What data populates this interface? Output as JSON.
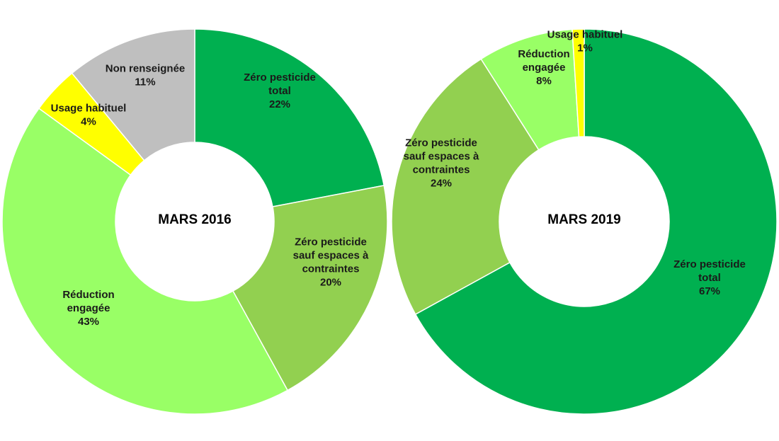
{
  "chart_data": [
    {
      "type": "pie",
      "title": "MARS 2016",
      "slices": [
        {
          "name": "Zéro pesticide total",
          "label_lines": [
            "Zéro pesticide",
            "total"
          ],
          "pct_label": "22%",
          "value": 22,
          "color": "#00b050"
        },
        {
          "name": "Zéro pesticide sauf espaces à contraintes",
          "label_lines": [
            "Zéro pesticide",
            "sauf espaces à",
            "contraintes"
          ],
          "pct_label": "20%",
          "value": 20,
          "color": "#92d050"
        },
        {
          "name": "Réduction engagée",
          "label_lines": [
            "Réduction",
            "engagée"
          ],
          "pct_label": "43%",
          "value": 43,
          "color": "#99ff66"
        },
        {
          "name": "Usage habituel",
          "label_lines": [
            "Usage habituel"
          ],
          "pct_label": "4%",
          "value": 4,
          "color": "#ffff00"
        },
        {
          "name": "Non renseignée",
          "label_lines": [
            "Non renseignée"
          ],
          "pct_label": "11%",
          "value": 11,
          "color": "#bfbfbf"
        }
      ]
    },
    {
      "type": "pie",
      "title": "MARS 2019",
      "slices": [
        {
          "name": "Zéro pesticide total",
          "label_lines": [
            "Zéro pesticide",
            "total"
          ],
          "pct_label": "67%",
          "value": 67,
          "color": "#00b050"
        },
        {
          "name": "Zéro pesticide sauf espaces à contraintes",
          "label_lines": [
            "Zéro pesticide",
            "sauf espaces à",
            "contraintes"
          ],
          "pct_label": "24%",
          "value": 24,
          "color": "#92d050"
        },
        {
          "name": "Réduction engagée",
          "label_lines": [
            "Réduction",
            "engagée"
          ],
          "pct_label": "8%",
          "value": 8,
          "color": "#99ff66"
        },
        {
          "name": "Usage habituel",
          "label_lines": [
            "Usage habituel"
          ],
          "pct_label": "1%",
          "value": 1,
          "color": "#ffff00"
        }
      ]
    }
  ]
}
